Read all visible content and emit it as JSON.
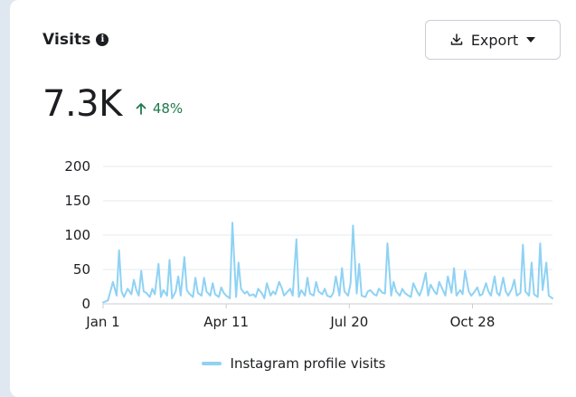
{
  "card": {
    "title": "Visits",
    "info_icon": "info-icon",
    "export_label": "Export",
    "export_icon": "download-icon",
    "export_caret_icon": "caret-down-icon",
    "metric_value": "7.3K",
    "metric_change": "48%",
    "metric_change_icon": "arrow-up-icon",
    "metric_change_color": "#1e7a4c"
  },
  "chart_data": {
    "type": "line",
    "title": "",
    "xlabel": "",
    "ylabel": "",
    "ylim": [
      0,
      200
    ],
    "yticks": [
      0,
      50,
      100,
      150,
      200
    ],
    "xtick_labels": [
      "Jan 1",
      "Apr 11",
      "Jul 20",
      "Oct 28"
    ],
    "xtick_days": [
      0,
      100,
      200,
      300
    ],
    "xlim_days": [
      0,
      365
    ],
    "grid": true,
    "legend_position": "bottom-center",
    "series": [
      {
        "name": "Instagram profile visits",
        "color": "#8fd2f4",
        "x_days": [
          0,
          4,
          8,
          11,
          13,
          15,
          17,
          20,
          23,
          25,
          27,
          29,
          31,
          33,
          35,
          38,
          40,
          42,
          45,
          47,
          49,
          52,
          54,
          56,
          59,
          61,
          63,
          66,
          68,
          70,
          73,
          75,
          77,
          80,
          82,
          84,
          87,
          89,
          91,
          94,
          96,
          98,
          100,
          103,
          105,
          108,
          110,
          112,
          115,
          117,
          119,
          122,
          124,
          126,
          129,
          131,
          133,
          136,
          138,
          140,
          143,
          145,
          147,
          150,
          152,
          154,
          157,
          159,
          161,
          164,
          166,
          168,
          171,
          173,
          175,
          178,
          180,
          182,
          185,
          187,
          189,
          192,
          194,
          196,
          199,
          201,
          203,
          206,
          208,
          210,
          213,
          215,
          217,
          220,
          222,
          224,
          227,
          229,
          231,
          234,
          236,
          238,
          241,
          243,
          245,
          248,
          250,
          252,
          255,
          257,
          259,
          262,
          264,
          266,
          269,
          271,
          273,
          276,
          278,
          280,
          283,
          285,
          287,
          290,
          292,
          294,
          297,
          299,
          301,
          304,
          306,
          308,
          311,
          313,
          315,
          318,
          320,
          322,
          325,
          327,
          329,
          332,
          334,
          336,
          339,
          341,
          343,
          346,
          348,
          350,
          353,
          355,
          357,
          360,
          362,
          365
        ],
        "values": [
          2,
          5,
          32,
          12,
          78,
          18,
          10,
          22,
          14,
          35,
          20,
          12,
          48,
          18,
          16,
          10,
          22,
          14,
          58,
          10,
          20,
          12,
          64,
          8,
          18,
          40,
          12,
          68,
          20,
          15,
          10,
          38,
          16,
          12,
          38,
          18,
          12,
          30,
          14,
          10,
          24,
          16,
          12,
          8,
          118,
          10,
          60,
          22,
          15,
          18,
          12,
          14,
          10,
          22,
          15,
          8,
          30,
          12,
          18,
          14,
          32,
          24,
          12,
          18,
          22,
          12,
          94,
          10,
          20,
          12,
          38,
          15,
          12,
          32,
          18,
          14,
          22,
          12,
          10,
          16,
          40,
          12,
          52,
          18,
          12,
          30,
          114,
          15,
          58,
          12,
          10,
          18,
          20,
          14,
          12,
          22,
          16,
          15,
          88,
          12,
          32,
          18,
          12,
          22,
          16,
          12,
          10,
          30,
          18,
          12,
          22,
          45,
          12,
          28,
          18,
          14,
          32,
          20,
          12,
          40,
          16,
          52,
          12,
          20,
          14,
          48,
          18,
          12,
          16,
          24,
          12,
          14,
          30,
          18,
          12,
          40,
          16,
          12,
          38,
          18,
          12,
          22,
          35,
          12,
          16,
          86,
          18,
          12,
          60,
          14,
          10,
          88,
          20,
          60,
          12,
          8
        ]
      }
    ]
  }
}
